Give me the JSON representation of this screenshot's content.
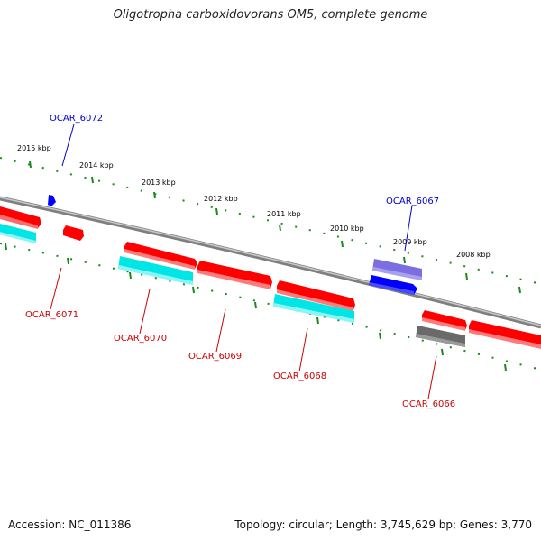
{
  "title": "Oligotropha carboxidovorans OM5, complete genome",
  "accession_label": "Accession: NC_011386",
  "summary_label": "Topology: circular; Length: 3,745,629 bp; Genes: 3,770",
  "colors": {
    "backbone": "#7f7f7f",
    "forward_gene": "#ff0000",
    "reverse_gene": "#ff0000",
    "cds_cyan": "#00e5e5",
    "gray_feature": "#6a6a6a",
    "blue_feature": "#0000ff",
    "purple_feature": "#7a6ee0",
    "tick_green": "#1a8a1a",
    "red_label": "#cc0000",
    "blue_label": "#0000cc"
  },
  "scale_labels": [
    {
      "text": "2015 kbp"
    },
    {
      "text": "2014 kbp"
    },
    {
      "text": "2013 kbp"
    },
    {
      "text": "2012 kbp"
    },
    {
      "text": "2011 kbp"
    },
    {
      "text": "2010 kbp"
    },
    {
      "text": "2009 kbp"
    },
    {
      "text": "2008 kbp"
    }
  ],
  "gene_labels": [
    {
      "name": "OCAR_6072",
      "color": "blue"
    },
    {
      "name": "OCAR_6067",
      "color": "blue"
    },
    {
      "name": "OCAR_6071",
      "color": "red"
    },
    {
      "name": "OCAR_6070",
      "color": "red"
    },
    {
      "name": "OCAR_6069",
      "color": "red"
    },
    {
      "name": "OCAR_6068",
      "color": "red"
    },
    {
      "name": "OCAR_6066",
      "color": "red"
    }
  ]
}
